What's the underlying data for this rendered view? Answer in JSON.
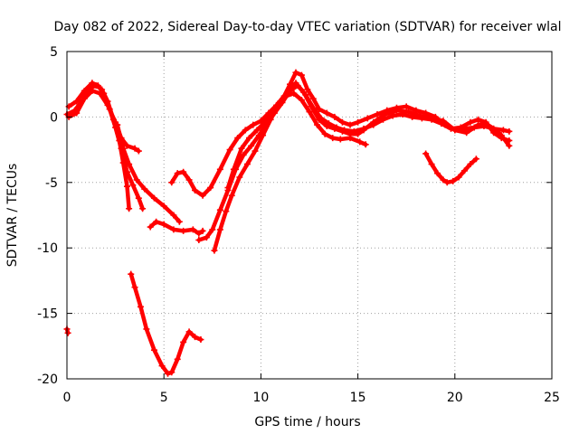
{
  "chart_data": {
    "type": "scatter",
    "title": "Day 082 of 2022, Sidereal Day-to-day VTEC variation (SDTVAR) for receiver wlal",
    "xlabel": "GPS time / hours",
    "ylabel": "SDTVAR / TECUs",
    "xlim": [
      0,
      25
    ],
    "ylim": [
      -20,
      5
    ],
    "xticks": [
      0,
      5,
      10,
      15,
      20,
      25
    ],
    "yticks": [
      5,
      0,
      -5,
      -10,
      -15,
      -20
    ],
    "grid": true,
    "marker": "plus",
    "color": "#ff0000",
    "series": [
      {
        "name": "track-a",
        "points": [
          [
            0.0,
            0.2
          ],
          [
            0.4,
            0.5
          ],
          [
            0.8,
            1.3
          ],
          [
            1.2,
            2.2
          ],
          [
            1.5,
            2.4
          ],
          [
            1.8,
            2.1
          ],
          [
            2.1,
            1.2
          ],
          [
            2.4,
            -0.2
          ],
          [
            2.7,
            -1.8
          ],
          [
            2.9,
            -3.5
          ],
          [
            3.1,
            -5.3
          ],
          [
            3.2,
            -7.0
          ]
        ]
      },
      {
        "name": "track-b",
        "points": [
          [
            0.1,
            0.8
          ],
          [
            0.5,
            1.2
          ],
          [
            0.9,
            2.0
          ],
          [
            1.3,
            2.6
          ],
          [
            1.6,
            2.4
          ],
          [
            1.9,
            1.8
          ],
          [
            2.2,
            0.6
          ],
          [
            2.5,
            -0.8
          ],
          [
            2.8,
            -2.4
          ],
          [
            3.1,
            -4.2
          ],
          [
            3.4,
            -5.2
          ],
          [
            3.7,
            -6.2
          ],
          [
            3.9,
            -7.0
          ]
        ]
      },
      {
        "name": "track-c",
        "points": [
          [
            0.1,
            0.0
          ],
          [
            0.5,
            0.3
          ],
          [
            0.9,
            1.4
          ],
          [
            1.3,
            2.0
          ],
          [
            1.7,
            1.8
          ],
          [
            2.1,
            0.9
          ],
          [
            2.5,
            -0.4
          ],
          [
            2.8,
            -1.6
          ],
          [
            3.1,
            -2.2
          ],
          [
            3.5,
            -2.4
          ],
          [
            3.7,
            -2.6
          ]
        ]
      },
      {
        "name": "track-d",
        "points": [
          [
            2.6,
            -0.6
          ],
          [
            2.9,
            -2.4
          ],
          [
            3.2,
            -3.6
          ],
          [
            3.6,
            -4.8
          ],
          [
            4.0,
            -5.5
          ],
          [
            4.5,
            -6.2
          ],
          [
            5.0,
            -6.8
          ],
          [
            5.5,
            -7.5
          ],
          [
            5.8,
            -8.0
          ]
        ]
      },
      {
        "name": "track-e",
        "points": [
          [
            4.3,
            -8.4
          ],
          [
            4.6,
            -8.0
          ],
          [
            5.0,
            -8.2
          ],
          [
            5.5,
            -8.6
          ],
          [
            6.0,
            -8.7
          ],
          [
            6.5,
            -8.6
          ],
          [
            6.8,
            -8.9
          ],
          [
            7.0,
            -8.7
          ]
        ]
      },
      {
        "name": "track-f",
        "points": [
          [
            5.4,
            -5.0
          ],
          [
            5.7,
            -4.3
          ],
          [
            6.0,
            -4.2
          ],
          [
            6.3,
            -4.8
          ],
          [
            6.6,
            -5.6
          ],
          [
            7.0,
            -6.0
          ],
          [
            7.4,
            -5.4
          ],
          [
            7.9,
            -4.0
          ],
          [
            8.4,
            -2.5
          ],
          [
            8.8,
            -1.6
          ],
          [
            9.2,
            -1.0
          ],
          [
            9.6,
            -0.6
          ],
          [
            10.0,
            -0.3
          ],
          [
            10.4,
            0.3
          ],
          [
            10.8,
            0.9
          ],
          [
            11.2,
            1.6
          ],
          [
            11.5,
            2.5
          ],
          [
            11.8,
            3.4
          ],
          [
            12.1,
            3.2
          ],
          [
            12.4,
            2.1
          ],
          [
            12.7,
            1.4
          ],
          [
            13.0,
            0.6
          ],
          [
            13.4,
            0.3
          ],
          [
            13.8,
            0.0
          ],
          [
            14.2,
            -0.4
          ],
          [
            14.6,
            -0.6
          ],
          [
            15.0,
            -0.4
          ],
          [
            15.5,
            -0.1
          ],
          [
            16.0,
            0.2
          ],
          [
            16.5,
            0.5
          ],
          [
            17.0,
            0.7
          ],
          [
            17.5,
            0.8
          ],
          [
            18.0,
            0.5
          ],
          [
            18.5,
            0.3
          ],
          [
            19.0,
            0.0
          ],
          [
            19.5,
            -0.6
          ],
          [
            20.0,
            -1.0
          ],
          [
            20.5,
            -0.9
          ],
          [
            21.0,
            -0.8
          ],
          [
            21.5,
            -0.7
          ],
          [
            22.0,
            -0.9
          ],
          [
            22.5,
            -1.0
          ],
          [
            22.8,
            -1.1
          ]
        ]
      },
      {
        "name": "track-g",
        "points": [
          [
            6.8,
            -9.4
          ],
          [
            7.2,
            -9.2
          ],
          [
            7.5,
            -8.6
          ],
          [
            7.9,
            -7.1
          ],
          [
            8.3,
            -5.6
          ],
          [
            8.7,
            -4.0
          ],
          [
            9.1,
            -2.9
          ],
          [
            9.5,
            -2.2
          ],
          [
            9.9,
            -1.4
          ],
          [
            10.3,
            -0.5
          ],
          [
            10.7,
            0.3
          ],
          [
            11.1,
            1.1
          ],
          [
            11.5,
            2.0
          ],
          [
            11.9,
            2.4
          ],
          [
            12.3,
            1.7
          ],
          [
            12.7,
            0.7
          ],
          [
            13.1,
            -0.1
          ],
          [
            13.5,
            -0.5
          ],
          [
            13.9,
            -0.8
          ],
          [
            14.3,
            -1.0
          ],
          [
            14.8,
            -1.1
          ],
          [
            15.3,
            -0.9
          ],
          [
            15.8,
            -0.6
          ],
          [
            16.3,
            -0.2
          ],
          [
            16.8,
            0.1
          ],
          [
            17.3,
            0.2
          ],
          [
            17.8,
            0.0
          ],
          [
            18.3,
            -0.1
          ],
          [
            18.8,
            -0.2
          ],
          [
            19.3,
            -0.5
          ],
          [
            19.8,
            -0.9
          ],
          [
            20.3,
            -0.8
          ],
          [
            20.8,
            -0.4
          ],
          [
            21.2,
            -0.2
          ],
          [
            21.6,
            -0.4
          ],
          [
            22.0,
            -1.2
          ],
          [
            22.4,
            -1.6
          ],
          [
            22.8,
            -1.8
          ]
        ]
      },
      {
        "name": "track-h",
        "points": [
          [
            7.6,
            -10.2
          ],
          [
            7.9,
            -8.6
          ],
          [
            8.2,
            -7.2
          ],
          [
            8.5,
            -6.0
          ],
          [
            8.9,
            -4.6
          ],
          [
            9.3,
            -3.6
          ],
          [
            9.7,
            -2.6
          ],
          [
            10.1,
            -1.4
          ],
          [
            10.5,
            -0.2
          ],
          [
            10.9,
            0.9
          ],
          [
            11.3,
            1.6
          ],
          [
            11.7,
            1.8
          ],
          [
            12.1,
            1.3
          ],
          [
            12.5,
            0.4
          ],
          [
            12.9,
            -0.6
          ],
          [
            13.3,
            -1.3
          ],
          [
            13.7,
            -1.6
          ],
          [
            14.1,
            -1.7
          ],
          [
            14.6,
            -1.6
          ],
          [
            15.1,
            -1.9
          ],
          [
            15.4,
            -2.1
          ]
        ]
      },
      {
        "name": "track-i",
        "points": [
          [
            8.3,
            -5.4
          ],
          [
            8.6,
            -4.0
          ],
          [
            9.0,
            -2.4
          ],
          [
            9.4,
            -1.6
          ],
          [
            9.8,
            -1.0
          ],
          [
            10.2,
            -0.4
          ],
          [
            10.6,
            0.3
          ],
          [
            11.0,
            1.2
          ],
          [
            11.4,
            2.0
          ],
          [
            11.8,
            2.6
          ],
          [
            12.2,
            1.9
          ],
          [
            12.6,
            0.8
          ],
          [
            13.0,
            -0.2
          ],
          [
            13.4,
            -0.7
          ],
          [
            13.8,
            -0.9
          ],
          [
            14.2,
            -1.1
          ],
          [
            14.6,
            -1.3
          ],
          [
            15.0,
            -1.3
          ],
          [
            15.3,
            -1.0
          ],
          [
            15.8,
            -0.4
          ],
          [
            16.4,
            0.2
          ],
          [
            17.0,
            0.5
          ],
          [
            17.6,
            0.4
          ],
          [
            18.2,
            0.1
          ],
          [
            18.8,
            -0.1
          ],
          [
            19.4,
            -0.3
          ],
          [
            20.0,
            -1.0
          ],
          [
            20.6,
            -1.2
          ],
          [
            21.2,
            -0.6
          ],
          [
            21.6,
            -0.5
          ],
          [
            22.0,
            -0.9
          ],
          [
            22.4,
            -1.4
          ],
          [
            22.8,
            -2.2
          ]
        ]
      },
      {
        "name": "track-j",
        "points": [
          [
            18.5,
            -2.8
          ],
          [
            18.8,
            -3.6
          ],
          [
            19.1,
            -4.3
          ],
          [
            19.4,
            -4.8
          ],
          [
            19.6,
            -5.0
          ],
          [
            19.9,
            -4.9
          ],
          [
            20.2,
            -4.6
          ],
          [
            20.5,
            -4.1
          ],
          [
            20.8,
            -3.6
          ],
          [
            21.1,
            -3.2
          ]
        ]
      },
      {
        "name": "track-k",
        "points": [
          [
            3.3,
            -12.0
          ],
          [
            3.5,
            -13.0
          ],
          [
            3.8,
            -14.5
          ],
          [
            4.1,
            -16.2
          ],
          [
            4.5,
            -17.8
          ],
          [
            4.9,
            -19.0
          ],
          [
            5.2,
            -19.6
          ],
          [
            5.4,
            -19.5
          ],
          [
            5.7,
            -18.5
          ],
          [
            6.0,
            -17.2
          ],
          [
            6.3,
            -16.4
          ],
          [
            6.6,
            -16.8
          ],
          [
            6.9,
            -17.0
          ]
        ]
      },
      {
        "name": "track-l",
        "points": [
          [
            0.0,
            -16.2
          ],
          [
            0.05,
            -16.5
          ]
        ]
      }
    ]
  }
}
